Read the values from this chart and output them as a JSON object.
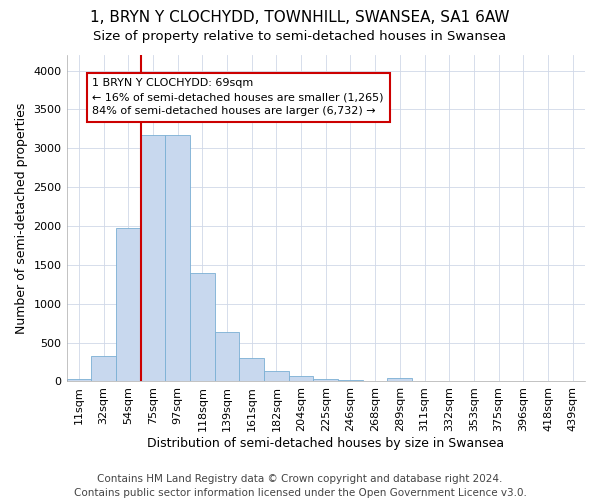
{
  "title": "1, BRYN Y CLOCHYDD, TOWNHILL, SWANSEA, SA1 6AW",
  "subtitle": "Size of property relative to semi-detached houses in Swansea",
  "xlabel": "Distribution of semi-detached houses by size in Swansea",
  "ylabel": "Number of semi-detached properties",
  "categories": [
    "11sqm",
    "32sqm",
    "54sqm",
    "75sqm",
    "97sqm",
    "118sqm",
    "139sqm",
    "161sqm",
    "182sqm",
    "204sqm",
    "225sqm",
    "246sqm",
    "268sqm",
    "289sqm",
    "311sqm",
    "332sqm",
    "353sqm",
    "375sqm",
    "396sqm",
    "418sqm",
    "439sqm"
  ],
  "values": [
    35,
    330,
    1980,
    3170,
    3170,
    1400,
    640,
    305,
    130,
    70,
    30,
    15,
    5,
    40,
    1,
    0,
    0,
    0,
    0,
    0,
    0
  ],
  "bar_color": "#c8d8ee",
  "bar_edge_color": "#7aafd4",
  "vline_position": 3,
  "vline_color": "#cc0000",
  "annotation_text": "1 BRYN Y CLOCHYDD: 69sqm\n← 16% of semi-detached houses are smaller (1,265)\n84% of semi-detached houses are larger (6,732) →",
  "annotation_box_edge_color": "#cc0000",
  "ylim": [
    0,
    4200
  ],
  "yticks": [
    0,
    500,
    1000,
    1500,
    2000,
    2500,
    3000,
    3500,
    4000
  ],
  "footer": "Contains HM Land Registry data © Crown copyright and database right 2024.\nContains public sector information licensed under the Open Government Licence v3.0.",
  "bg_color": "#ffffff",
  "plot_bg_color": "#ffffff",
  "title_fontsize": 11,
  "subtitle_fontsize": 9.5,
  "axis_label_fontsize": 9,
  "tick_fontsize": 8,
  "footer_fontsize": 7.5,
  "annotation_fontsize": 8
}
